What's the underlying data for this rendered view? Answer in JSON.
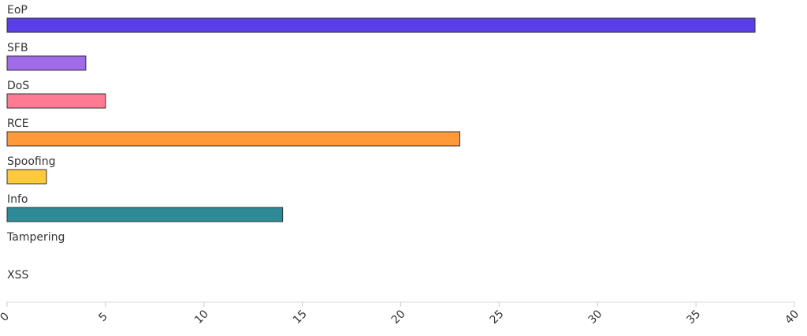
{
  "chart_data": {
    "type": "bar",
    "orientation": "horizontal",
    "categories": [
      "EoP",
      "SFB",
      "DoS",
      "RCE",
      "Spoofing",
      "Info",
      "Tampering",
      "XSS"
    ],
    "values": [
      38,
      4,
      5,
      23,
      2,
      14,
      0,
      0
    ],
    "colors": [
      "#5a3ee8",
      "#a06ae8",
      "#ff7b93",
      "#ff9a3a",
      "#ffc93c",
      "#2e8a97",
      "#aaaaaa",
      "#aaaaaa"
    ],
    "xlim": [
      0,
      40
    ],
    "xticks": [
      0,
      5,
      10,
      15,
      20,
      25,
      30,
      35,
      40
    ],
    "grid": false
  }
}
